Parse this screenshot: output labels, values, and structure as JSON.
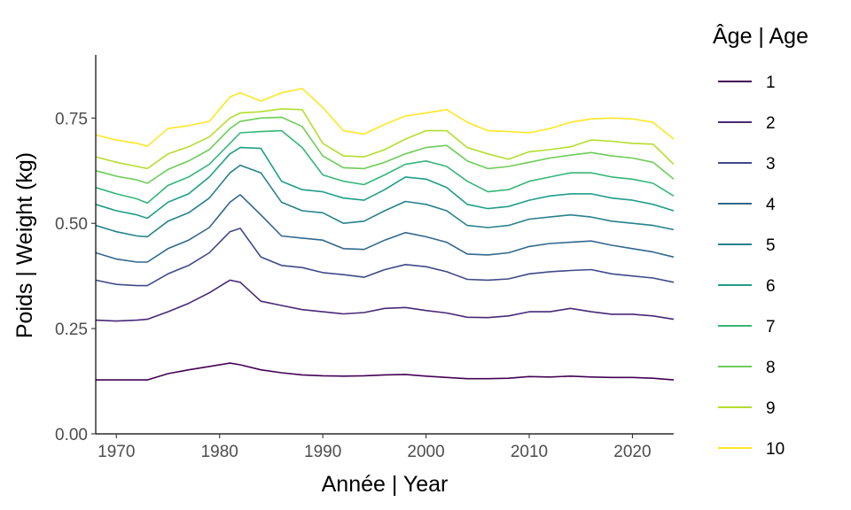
{
  "chart_data": {
    "type": "line",
    "title": "",
    "xlabel": "Année | Year",
    "ylabel": "Poids | Weight (kg)",
    "xlim": [
      1968,
      2024
    ],
    "ylim": [
      0,
      0.9
    ],
    "x_ticks": [
      1970,
      1980,
      1990,
      2000,
      2010,
      2020
    ],
    "y_ticks": [
      0,
      0.25,
      0.5,
      0.75
    ],
    "y_tick_labels": [
      "0.00",
      "0.25",
      "0.50",
      "0.75"
    ],
    "grid": false,
    "legend": {
      "title": "Âge | Age",
      "position": "right"
    },
    "x": [
      1968,
      1970,
      1972,
      1973,
      1975,
      1977,
      1979,
      1981,
      1982,
      1984,
      1986,
      1988,
      1990,
      1992,
      1994,
      1996,
      1998,
      2000,
      2002,
      2004,
      2006,
      2008,
      2010,
      2012,
      2014,
      2016,
      2018,
      2020,
      2022,
      2024
    ],
    "series": [
      {
        "name": "1",
        "color": "#440154",
        "values": [
          0.128,
          0.128,
          0.128,
          0.128,
          0.143,
          0.152,
          0.16,
          0.168,
          0.164,
          0.152,
          0.145,
          0.14,
          0.138,
          0.137,
          0.138,
          0.14,
          0.141,
          0.137,
          0.134,
          0.131,
          0.131,
          0.132,
          0.136,
          0.135,
          0.137,
          0.135,
          0.134,
          0.134,
          0.132,
          0.128
        ]
      },
      {
        "name": "2",
        "color": "#482878",
        "values": [
          0.27,
          0.268,
          0.27,
          0.272,
          0.29,
          0.31,
          0.335,
          0.365,
          0.36,
          0.315,
          0.305,
          0.295,
          0.29,
          0.285,
          0.288,
          0.298,
          0.3,
          0.293,
          0.287,
          0.277,
          0.276,
          0.28,
          0.29,
          0.29,
          0.298,
          0.29,
          0.284,
          0.284,
          0.28,
          0.272
        ]
      },
      {
        "name": "3",
        "color": "#3E4A89",
        "values": [
          0.365,
          0.355,
          0.352,
          0.352,
          0.38,
          0.4,
          0.43,
          0.48,
          0.488,
          0.42,
          0.4,
          0.395,
          0.383,
          0.378,
          0.372,
          0.39,
          0.402,
          0.397,
          0.385,
          0.367,
          0.365,
          0.368,
          0.38,
          0.385,
          0.388,
          0.39,
          0.38,
          0.375,
          0.37,
          0.36
        ]
      },
      {
        "name": "4",
        "color": "#31688E",
        "values": [
          0.43,
          0.415,
          0.408,
          0.408,
          0.44,
          0.46,
          0.49,
          0.55,
          0.568,
          0.52,
          0.47,
          0.465,
          0.46,
          0.44,
          0.438,
          0.46,
          0.478,
          0.468,
          0.455,
          0.427,
          0.425,
          0.43,
          0.445,
          0.452,
          0.455,
          0.458,
          0.448,
          0.44,
          0.432,
          0.42
        ]
      },
      {
        "name": "5",
        "color": "#26828E",
        "values": [
          0.495,
          0.48,
          0.47,
          0.468,
          0.505,
          0.525,
          0.56,
          0.62,
          0.638,
          0.62,
          0.55,
          0.53,
          0.525,
          0.5,
          0.505,
          0.53,
          0.552,
          0.545,
          0.53,
          0.495,
          0.49,
          0.495,
          0.51,
          0.515,
          0.52,
          0.515,
          0.505,
          0.5,
          0.495,
          0.485
        ]
      },
      {
        "name": "6",
        "color": "#1F9E89",
        "values": [
          0.545,
          0.53,
          0.52,
          0.512,
          0.55,
          0.57,
          0.61,
          0.665,
          0.68,
          0.678,
          0.6,
          0.58,
          0.575,
          0.56,
          0.555,
          0.58,
          0.61,
          0.605,
          0.585,
          0.545,
          0.535,
          0.54,
          0.555,
          0.565,
          0.57,
          0.57,
          0.56,
          0.555,
          0.545,
          0.53
        ]
      },
      {
        "name": "7",
        "color": "#35B779",
        "values": [
          0.585,
          0.57,
          0.558,
          0.548,
          0.59,
          0.61,
          0.64,
          0.69,
          0.715,
          0.718,
          0.72,
          0.68,
          0.615,
          0.6,
          0.592,
          0.615,
          0.64,
          0.648,
          0.635,
          0.6,
          0.575,
          0.58,
          0.6,
          0.61,
          0.62,
          0.62,
          0.61,
          0.605,
          0.595,
          0.565
        ]
      },
      {
        "name": "8",
        "color": "#6DCD59",
        "values": [
          0.625,
          0.612,
          0.603,
          0.595,
          0.628,
          0.648,
          0.675,
          0.725,
          0.742,
          0.75,
          0.752,
          0.73,
          0.66,
          0.632,
          0.63,
          0.645,
          0.665,
          0.68,
          0.685,
          0.648,
          0.63,
          0.635,
          0.645,
          0.655,
          0.662,
          0.668,
          0.66,
          0.655,
          0.645,
          0.605
        ]
      },
      {
        "name": "9",
        "color": "#B4DE2C",
        "values": [
          0.658,
          0.645,
          0.635,
          0.63,
          0.665,
          0.682,
          0.705,
          0.75,
          0.762,
          0.765,
          0.772,
          0.77,
          0.69,
          0.66,
          0.658,
          0.675,
          0.7,
          0.72,
          0.72,
          0.68,
          0.665,
          0.652,
          0.67,
          0.675,
          0.682,
          0.698,
          0.695,
          0.69,
          0.688,
          0.64
        ]
      },
      {
        "name": "10",
        "color": "#FDE725",
        "values": [
          0.71,
          0.698,
          0.69,
          0.683,
          0.725,
          0.732,
          0.742,
          0.8,
          0.81,
          0.79,
          0.81,
          0.82,
          0.775,
          0.72,
          0.712,
          0.735,
          0.755,
          0.762,
          0.77,
          0.74,
          0.72,
          0.718,
          0.715,
          0.725,
          0.74,
          0.748,
          0.75,
          0.748,
          0.74,
          0.7
        ]
      }
    ]
  }
}
